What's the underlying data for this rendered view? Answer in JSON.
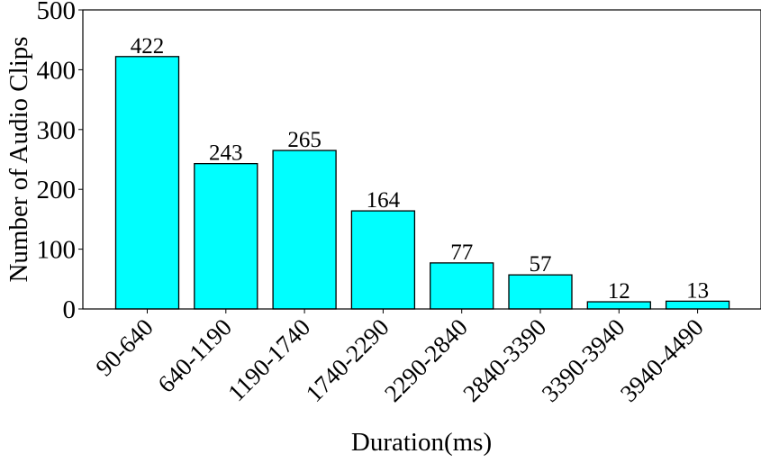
{
  "chart_data": {
    "type": "bar",
    "title": "",
    "xlabel": "Duration(ms)",
    "ylabel": "Number of Audio Clips",
    "categories": [
      "90-640",
      "640-1190",
      "1190-1740",
      "1740-2290",
      "2290-2840",
      "2840-3390",
      "3390-3940",
      "3940-4490"
    ],
    "values": [
      422,
      243,
      265,
      164,
      77,
      57,
      12,
      13
    ],
    "data_labels": [
      "422",
      "243",
      "265",
      "164",
      "77",
      "57",
      "12",
      "13"
    ],
    "ylim": [
      0,
      500
    ],
    "yticks": [
      0,
      100,
      200,
      300,
      400,
      500
    ],
    "grid": false,
    "legend": null,
    "bar_color": "#00FFFF",
    "edge_color": "#000000"
  }
}
